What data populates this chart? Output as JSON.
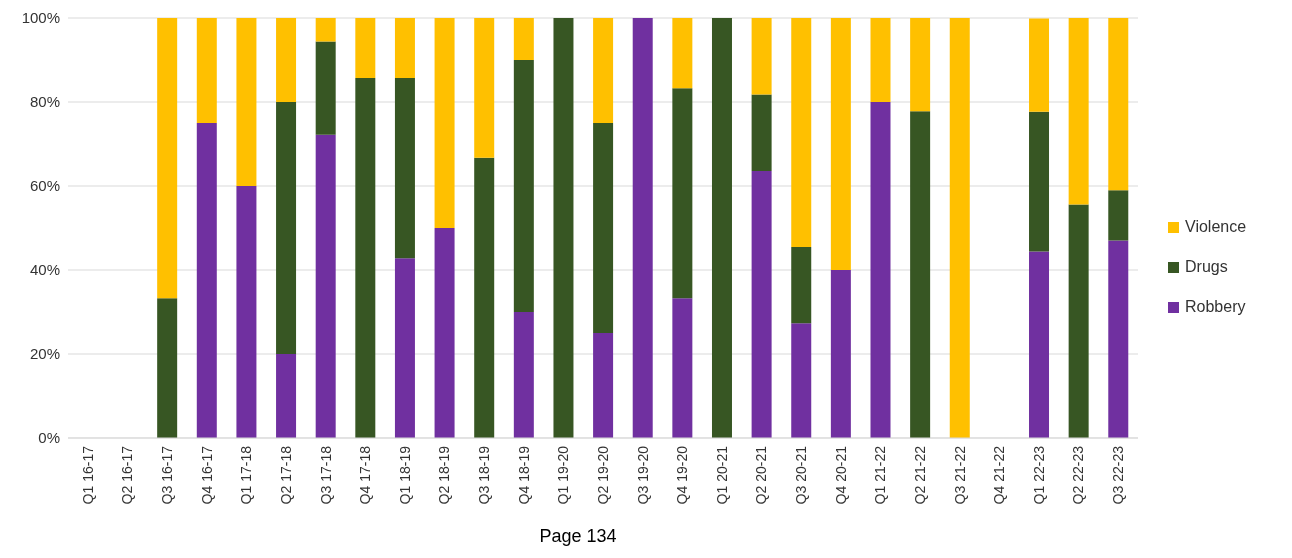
{
  "chart_data": {
    "type": "bar",
    "stacked": true,
    "categories": [
      "Q1 16-17",
      "Q2 16-17",
      "Q3 16-17",
      "Q4 16-17",
      "Q1 17-18",
      "Q2 17-18",
      "Q3 17-18",
      "Q4 17-18",
      "Q1 18-19",
      "Q2 18-19",
      "Q3 18-19",
      "Q4 18-19",
      "Q1 19-20",
      "Q2 19-20",
      "Q3 19-20",
      "Q4 19-20",
      "Q1 20-21",
      "Q2 20-21",
      "Q3 20-21",
      "Q4 20-21",
      "Q1 21-22",
      "Q2 21-22",
      "Q3 21-22",
      "Q4 21-22",
      "Q1 22-23",
      "Q2 22-23",
      "Q3 22-23"
    ],
    "series": [
      {
        "name": "Robbery",
        "color": "#7030a0",
        "values": [
          0,
          0,
          0,
          75,
          60,
          20,
          72.2,
          0,
          42.8,
          50,
          0,
          30,
          0,
          25,
          100,
          33.3,
          0,
          63.6,
          27.3,
          40,
          80,
          0,
          0,
          0,
          44.4,
          0,
          47
        ]
      },
      {
        "name": "Drugs",
        "color": "#375623",
        "values": [
          0,
          0,
          33.3,
          0,
          0,
          60,
          22.2,
          85.7,
          42.9,
          0,
          66.7,
          60,
          100,
          50,
          0,
          50,
          100,
          18.2,
          18.2,
          0,
          0,
          77.8,
          0,
          0,
          33.3,
          55.6,
          12
        ]
      },
      {
        "name": "Violence",
        "color": "#ffc000",
        "values": [
          0,
          0,
          66.7,
          25,
          40,
          20,
          5.6,
          14.3,
          14.3,
          50,
          33.3,
          10,
          0,
          25,
          0,
          16.7,
          0,
          18.2,
          54.5,
          60,
          20,
          22.2,
          100,
          0,
          22.2,
          44.4,
          41
        ]
      }
    ],
    "ylim": [
      0,
      100
    ],
    "yticks": [
      {
        "value": 0,
        "label": "0%"
      },
      {
        "value": 20,
        "label": "20%"
      },
      {
        "value": 40,
        "label": "40%"
      },
      {
        "value": 60,
        "label": "60%"
      },
      {
        "value": 80,
        "label": "80%"
      },
      {
        "value": 100,
        "label": "100%"
      }
    ],
    "grid": "y",
    "legend": "right",
    "annotations": [
      "Page 134"
    ]
  }
}
